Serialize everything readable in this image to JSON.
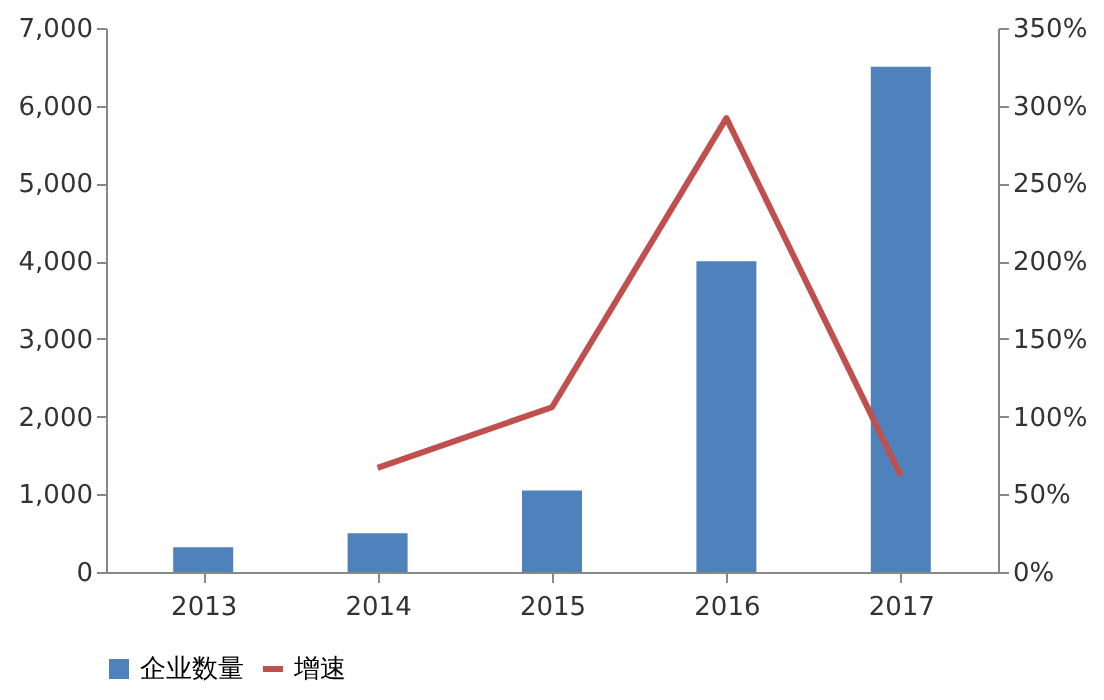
{
  "chart_data": {
    "type": "bar",
    "categories": [
      "2013",
      "2014",
      "2015",
      "2016",
      "2017"
    ],
    "series": [
      {
        "name": "企业数量",
        "color": "#4f81bd",
        "values": [
          320,
          500,
          1050,
          4000,
          6500
        ]
      },
      {
        "name": "增速",
        "type": "line",
        "axis": "y2",
        "color": "#c0504d",
        "values": [
          null,
          67,
          106,
          292,
          62
        ]
      }
    ],
    "ylim": [
      0,
      7000
    ],
    "yticks": [
      0,
      {
        "value": 1000,
        "label": "1,000"
      },
      {
        "value": 2000,
        "label": "2,000"
      },
      {
        "value": 3000,
        "label": "3,000"
      },
      {
        "value": 4000,
        "label": "4,000"
      },
      {
        "value": 5000,
        "label": "5,000"
      },
      {
        "value": 6000,
        "label": "6,000"
      },
      {
        "value": 7000,
        "label": "7,000"
      }
    ],
    "y2lim": [
      0,
      350
    ],
    "y2ticks": [
      {
        "value": 0,
        "label": "0%"
      },
      {
        "value": 50,
        "label": "50%"
      },
      {
        "value": 100,
        "label": "100%"
      },
      {
        "value": 150,
        "label": "150%"
      },
      {
        "value": 200,
        "label": "200%"
      },
      {
        "value": 250,
        "label": "250%"
      },
      {
        "value": 300,
        "label": "300%"
      },
      {
        "value": 350,
        "label": "350%"
      }
    ],
    "grid": false,
    "legend": "bottom",
    "line_style": "solid",
    "marker": "none"
  }
}
